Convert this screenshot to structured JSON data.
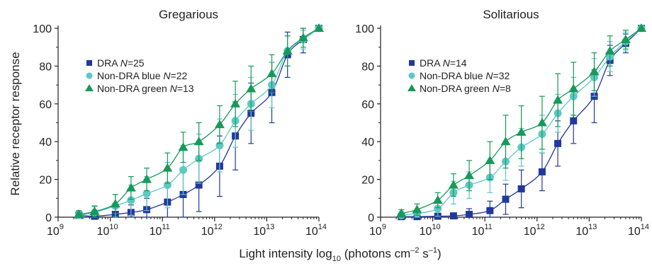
{
  "figure": {
    "ylabel": "Relative receptor response",
    "xlabel": {
      "prefix": "Light intensity log",
      "sub": "10",
      "mid1": " (photons cm",
      "sup1": "–2",
      "mid2": " s",
      "sup2": "–1",
      "suffix": ")"
    }
  },
  "chart_data": [
    {
      "type": "scatter",
      "title": "Gregarious",
      "x_scale": "log",
      "xlim": [
        1000000000.0,
        100000000000000.0
      ],
      "ylim": [
        0,
        100
      ],
      "x_tick_exponents": [
        9,
        10,
        11,
        12,
        13,
        14
      ],
      "x_tick_base": "10",
      "y_ticks": [
        "0",
        "20",
        "40",
        "60",
        "80",
        "100"
      ],
      "legend_placement": "upper-left",
      "x": [
        2500000000.0,
        5000000000.0,
        12500000000.0,
        25000000000.0,
        50000000000.0,
        125000000000.0,
        250000000000.0,
        500000000000.0,
        1250000000000.0,
        2500000000000.0,
        5000000000000.0,
        12500000000000.0,
        25000000000000.0,
        50000000000000.0,
        100000000000000.0
      ],
      "series": [
        {
          "label_prefix": "DRA ",
          "label_n": "N",
          "label_value": "=25",
          "color": "#23389c",
          "marker": "square",
          "y": [
            1,
            0.5,
            1.5,
            2.5,
            4,
            8,
            12,
            17,
            27,
            43,
            55,
            66,
            86,
            94,
            100
          ],
          "err": [
            2,
            1.5,
            3,
            4,
            6,
            10,
            14,
            14,
            16,
            18,
            16,
            16,
            12,
            7,
            0
          ]
        },
        {
          "label_prefix": "Non-DRA blue ",
          "label_n": "N",
          "label_value": "=22",
          "color": "#5cc9c3",
          "marker": "circle",
          "y": [
            1,
            2.5,
            6,
            9,
            12.5,
            17,
            25,
            31,
            38,
            51,
            60,
            70,
            88,
            94,
            100
          ],
          "err": [
            2,
            3,
            6,
            8,
            9,
            12,
            13,
            13,
            14,
            14,
            14,
            12,
            8,
            5,
            0
          ]
        },
        {
          "label_prefix": "Non-DRA green ",
          "label_n": "N",
          "label_value": "=13",
          "color": "#17995a",
          "marker": "triangle",
          "y": [
            1.5,
            3,
            7,
            15.5,
            20,
            26,
            37,
            40,
            49,
            60,
            68,
            76,
            88,
            95,
            100
          ],
          "err": [
            2,
            3,
            5,
            6,
            6,
            8,
            8,
            10,
            10,
            12,
            12,
            10,
            8,
            5,
            0
          ]
        }
      ]
    },
    {
      "type": "scatter",
      "title": "Solitarious",
      "x_scale": "log",
      "xlim": [
        1000000000.0,
        100000000000000.0
      ],
      "ylim": [
        0,
        100
      ],
      "x_tick_exponents": [
        9,
        10,
        11,
        12,
        13,
        14
      ],
      "x_tick_base": "10",
      "y_ticks": [
        "0",
        "20",
        "40",
        "60",
        "80",
        "100"
      ],
      "legend_placement": "upper-left",
      "x": [
        2500000000.0,
        5000000000.0,
        12500000000.0,
        25000000000.0,
        50000000000.0,
        125000000000.0,
        250000000000.0,
        500000000000.0,
        1250000000000.0,
        2500000000000.0,
        5000000000000.0,
        12500000000000.0,
        25000000000000.0,
        50000000000000.0,
        100000000000000.0
      ],
      "series": [
        {
          "label_prefix": "DRA ",
          "label_n": "N",
          "label_value": "=14",
          "color": "#23389c",
          "marker": "square",
          "y": [
            0.3,
            0.3,
            0.5,
            0.7,
            1.5,
            3.5,
            9.5,
            15,
            24,
            39,
            51,
            64,
            83,
            92,
            100
          ],
          "err": [
            1,
            1,
            1,
            1.5,
            3,
            5,
            8,
            10,
            10,
            12,
            12,
            14,
            8,
            5,
            0
          ]
        },
        {
          "label_prefix": "Non-DRA blue ",
          "label_n": "N",
          "label_value": "=32",
          "color": "#5cc9c3",
          "marker": "circle",
          "y": [
            1,
            2,
            4.5,
            13,
            17,
            21,
            29.5,
            37,
            44,
            55,
            64,
            74,
            85,
            93,
            100
          ],
          "err": [
            2,
            2,
            4,
            6,
            7,
            8,
            10,
            10,
            10,
            10,
            10,
            10,
            8,
            5,
            0
          ]
        },
        {
          "label_prefix": "Non-DRA green ",
          "label_n": "N",
          "label_value": "=8",
          "color": "#17995a",
          "marker": "triangle",
          "y": [
            2,
            4,
            9,
            17,
            22,
            30,
            40,
            45,
            50,
            62,
            68,
            77,
            88,
            94,
            100
          ],
          "err": [
            2,
            3,
            4,
            6,
            8,
            10,
            14,
            14,
            14,
            14,
            14,
            10,
            8,
            5,
            0
          ]
        }
      ]
    }
  ]
}
